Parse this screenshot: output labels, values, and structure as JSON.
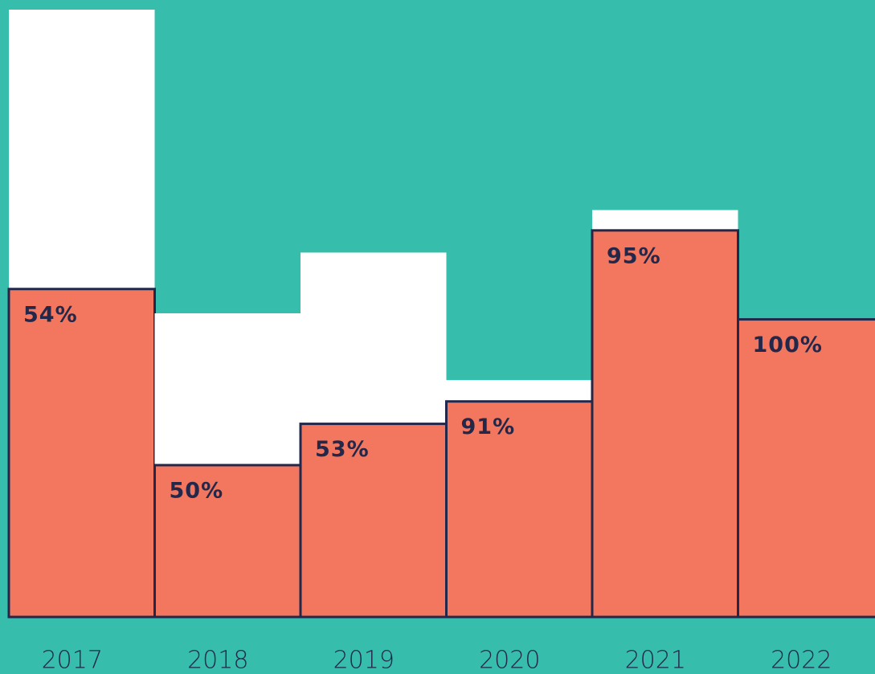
{
  "chart_data": {
    "type": "bar",
    "categories": [
      "2017",
      "2018",
      "2019",
      "2020",
      "2021",
      "2022"
    ],
    "values": [
      100,
      50,
      60,
      39,
      67,
      49
    ],
    "color": "#ffffff",
    "shares": {
      "values": [
        54,
        50,
        53,
        91,
        95,
        100
      ],
      "value_labels": [
        "54%",
        "50%",
        "53%",
        "91%",
        "95%",
        "100%"
      ],
      "color": "#f2775e"
    },
    "ylim": [
      0,
      100
    ]
  }
}
